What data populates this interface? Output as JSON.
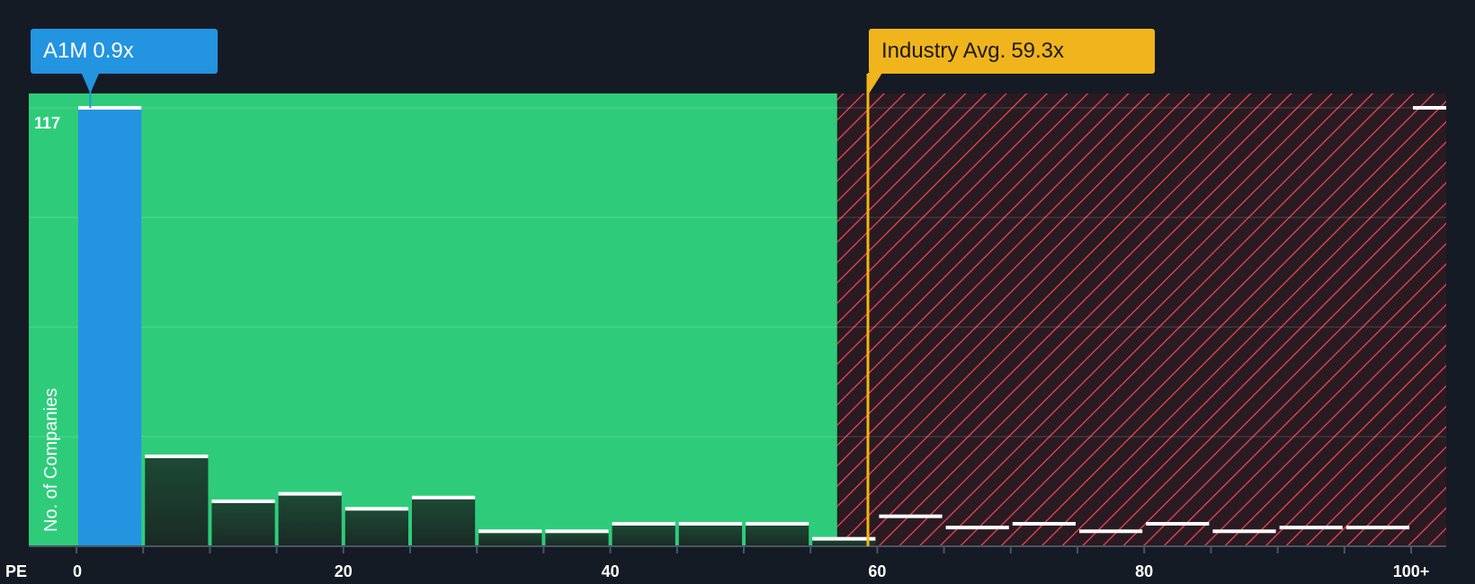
{
  "company_callout": {
    "ticker": "A1M",
    "value": "0.9x"
  },
  "industry_callout": {
    "label": "Industry Avg.",
    "value": "59.3x"
  },
  "colors": {
    "background": "#151b24",
    "green": "#2ecc7a",
    "company_bar": "#2394e0",
    "hatch_bg": "#2a1a22",
    "hatch_line": "#d0414e",
    "industry": "#f0b41c"
  },
  "chart_data": {
    "type": "bar",
    "title": "",
    "xlabel": "PE",
    "ylabel": "No. of Companies",
    "x_ticks": [
      "0",
      "20",
      "40",
      "60",
      "80",
      "100+"
    ],
    "y_label_value": "117",
    "xlim": [
      0,
      101
    ],
    "ylim": [
      0,
      117
    ],
    "bin_width": 5,
    "bins": [
      {
        "start": 0,
        "value": 117,
        "highlight": true
      },
      {
        "start": 5,
        "value": 24
      },
      {
        "start": 10,
        "value": 12
      },
      {
        "start": 15,
        "value": 14
      },
      {
        "start": 20,
        "value": 10
      },
      {
        "start": 25,
        "value": 13
      },
      {
        "start": 30,
        "value": 4
      },
      {
        "start": 35,
        "value": 4
      },
      {
        "start": 40,
        "value": 6
      },
      {
        "start": 45,
        "value": 6
      },
      {
        "start": 50,
        "value": 6
      },
      {
        "start": 55,
        "value": 2
      },
      {
        "start": 60,
        "value": 8
      },
      {
        "start": 65,
        "value": 5
      },
      {
        "start": 70,
        "value": 6
      },
      {
        "start": 75,
        "value": 4
      },
      {
        "start": 80,
        "value": 6
      },
      {
        "start": 85,
        "value": 4
      },
      {
        "start": 90,
        "value": 5
      },
      {
        "start": 95,
        "value": 5
      },
      {
        "start": 100,
        "value": 117
      }
    ],
    "company_value": 0.9,
    "industry_avg": 59.3,
    "fair_threshold": 57.0
  }
}
